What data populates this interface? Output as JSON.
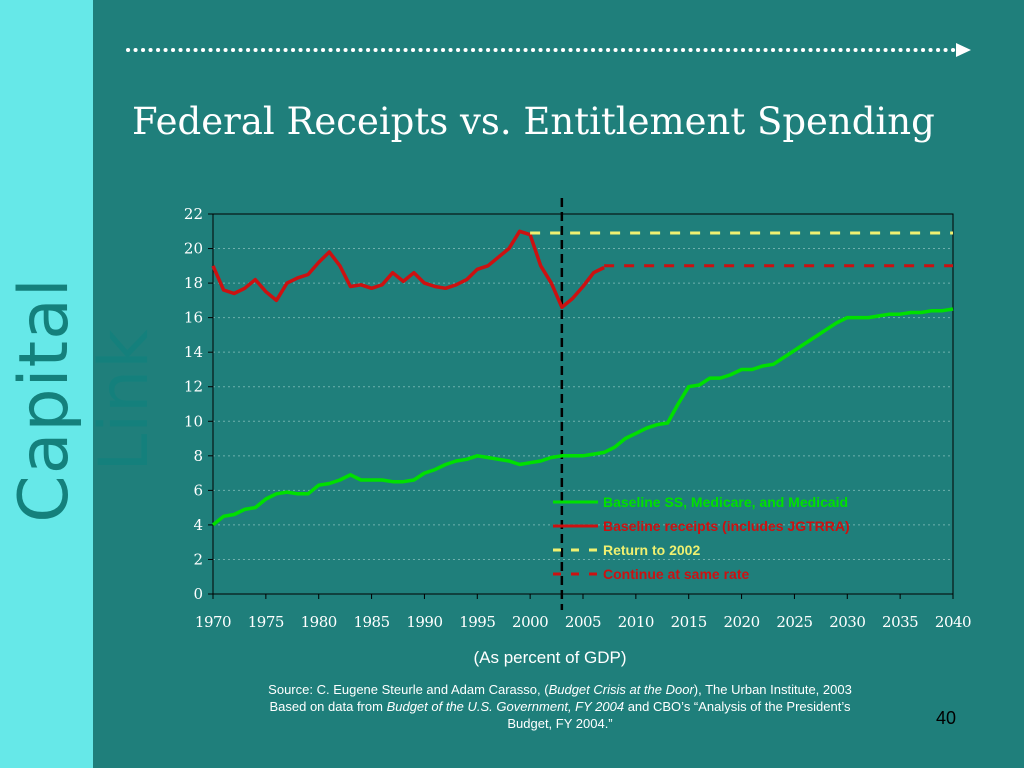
{
  "slide": {
    "brand": "Capital Link",
    "title": "Federal Receipts vs. Entitlement Spending",
    "caption": "(As percent of GDP)",
    "source_line1_a": "Source:  C. Eugene Steurle and Adam Carasso, (",
    "source_line1_b": "Budget Crisis at the Door",
    "source_line1_c": "),  The Urban Institute, 2003",
    "source_line2_a": "Based on data from ",
    "source_line2_b": "Budget of the U.S. Government, FY 2004",
    "source_line2_c": " and CBO’s “Analysis of  the President’s",
    "source_line3": "Budget, FY 2004.”",
    "page_number": "40",
    "colors": {
      "background": "#1f7f7b",
      "sidebar": "#66e8e8",
      "green": "#00e000",
      "red": "#cc1111",
      "yellow": "#f0f070"
    }
  },
  "chart_data": {
    "type": "line",
    "title": "Federal Receipts vs. Entitlement Spending",
    "xlabel": "(As percent of GDP)",
    "ylabel": "",
    "xlim": [
      1970,
      2040
    ],
    "ylim": [
      0,
      22
    ],
    "x_ticks": [
      1970,
      1975,
      1980,
      1985,
      1990,
      1995,
      2000,
      2005,
      2010,
      2015,
      2020,
      2025,
      2030,
      2035,
      2040
    ],
    "y_ticks": [
      0,
      2,
      4,
      6,
      8,
      10,
      12,
      14,
      16,
      18,
      20,
      22
    ],
    "vertical_marker": 2003,
    "grid": "horizontal dashed",
    "legend_position": "lower-right",
    "series": [
      {
        "name": "Baseline SS, Medicare, and Medicaid",
        "color": "#00e000",
        "style": "solid",
        "x": [
          1970,
          1971,
          1972,
          1973,
          1974,
          1975,
          1976,
          1977,
          1978,
          1979,
          1980,
          1981,
          1982,
          1983,
          1984,
          1985,
          1986,
          1987,
          1988,
          1989,
          1990,
          1991,
          1992,
          1993,
          1994,
          1995,
          1996,
          1997,
          1998,
          1999,
          2000,
          2001,
          2002,
          2003,
          2004,
          2005,
          2006,
          2007,
          2008,
          2009,
          2010,
          2011,
          2012,
          2013,
          2014,
          2015,
          2016,
          2017,
          2018,
          2019,
          2020,
          2021,
          2022,
          2023,
          2024,
          2025,
          2026,
          2027,
          2028,
          2029,
          2030,
          2031,
          2032,
          2033,
          2034,
          2035,
          2036,
          2037,
          2038,
          2039,
          2040
        ],
        "values": [
          4.0,
          4.5,
          4.6,
          4.9,
          5.0,
          5.5,
          5.8,
          5.9,
          5.8,
          5.8,
          6.3,
          6.4,
          6.6,
          6.9,
          6.6,
          6.6,
          6.6,
          6.5,
          6.5,
          6.6,
          7.0,
          7.2,
          7.5,
          7.7,
          7.8,
          8.0,
          7.9,
          7.8,
          7.7,
          7.5,
          7.6,
          7.7,
          7.9,
          8.0,
          8.0,
          8.0,
          8.1,
          8.2,
          8.5,
          9.0,
          9.3,
          9.6,
          9.8,
          9.9,
          11.0,
          12.0,
          12.1,
          12.5,
          12.5,
          12.7,
          13.0,
          13.0,
          13.2,
          13.3,
          13.7,
          14.1,
          14.5,
          14.9,
          15.3,
          15.7,
          16.0,
          16.0,
          16.0,
          16.1,
          16.2,
          16.2,
          16.3,
          16.3,
          16.4,
          16.4,
          16.5
        ]
      },
      {
        "name": "Baseline receipts (includes JGTRRA)",
        "color": "#cc1111",
        "style": "solid",
        "x": [
          1970,
          1971,
          1972,
          1973,
          1974,
          1975,
          1976,
          1977,
          1978,
          1979,
          1980,
          1981,
          1982,
          1983,
          1984,
          1985,
          1986,
          1987,
          1988,
          1989,
          1990,
          1991,
          1992,
          1993,
          1994,
          1995,
          1996,
          1997,
          1998,
          1999,
          2000,
          2001,
          2002,
          2003,
          2004,
          2005,
          2006,
          2007
        ],
        "values": [
          19.0,
          17.6,
          17.4,
          17.7,
          18.2,
          17.5,
          17.0,
          18.0,
          18.3,
          18.5,
          19.2,
          19.8,
          19.0,
          17.8,
          17.9,
          17.7,
          17.9,
          18.6,
          18.1,
          18.6,
          18.0,
          17.8,
          17.7,
          17.9,
          18.2,
          18.8,
          19.0,
          19.5,
          20.0,
          21.0,
          20.8,
          19.0,
          18.0,
          16.6,
          17.1,
          17.8,
          18.6,
          18.9
        ]
      },
      {
        "name": "Return to 2002",
        "color": "#f0f070",
        "style": "dashed",
        "x": [
          2000,
          2040
        ],
        "values": [
          20.9,
          20.9
        ]
      },
      {
        "name": "Continue at same rate",
        "color": "#cc1111",
        "style": "dashed",
        "x": [
          2007,
          2040
        ],
        "values": [
          19.0,
          19.0
        ]
      }
    ]
  }
}
